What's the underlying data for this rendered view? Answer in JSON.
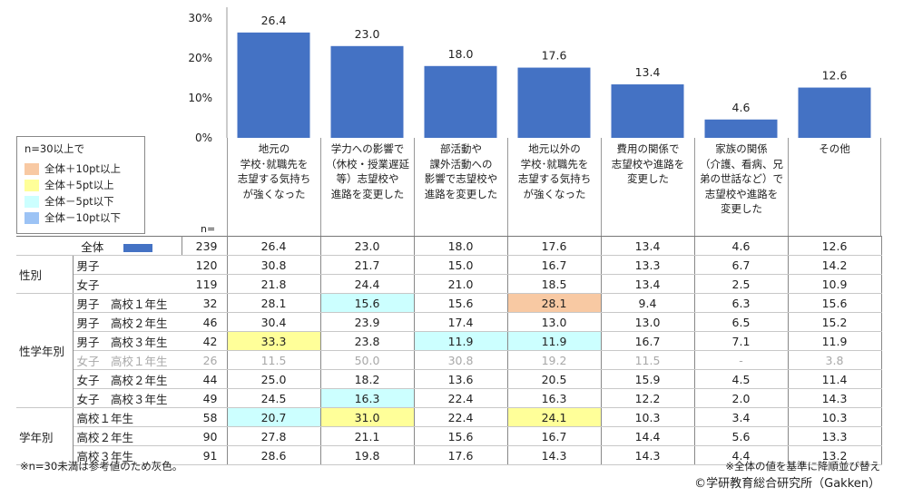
{
  "chart_data": {
    "type": "bar",
    "yticks": [
      "30%",
      "20%",
      "10%",
      "0%"
    ],
    "ylim": [
      0,
      30
    ],
    "bar_color": "#4472c4",
    "categories": [
      "地元の\n学校･就職先を\n志望する気持ち\nが強くなった",
      "学力への影響で\n（休校・授業遅延\n等）志望校や\n進路を変更した",
      "部活動や\n課外活動への\n影響で志望校や\n進路を変更した",
      "地元以外の\n学校･就職先を\n志望する気持ち\nが強くなった",
      "費用の関係で\n志望校や進路を\n変更した",
      "家族の関係\n（介護、看病、兄\n弟の世話など）で\n志望校や進路を\n変更した",
      "その他"
    ],
    "values": [
      26.4,
      23.0,
      18.0,
      17.6,
      13.4,
      4.6,
      12.6
    ],
    "value_labels": [
      "26.4",
      "23.0",
      "18.0",
      "17.6",
      "13.4",
      "4.6",
      "12.6"
    ]
  },
  "legend": {
    "title": "n=30以上で",
    "items": [
      {
        "label": "全体＋10pt以上",
        "color": "#f8c9a3"
      },
      {
        "label": "全体＋5pt以上",
        "color": "#ffff99"
      },
      {
        "label": "全体－5pt以下",
        "color": "#ccffff"
      },
      {
        "label": "全体－10pt以下",
        "color": "#9cc3f5"
      }
    ]
  },
  "n_header": "n=",
  "table": {
    "rows": [
      {
        "group": "",
        "label": "全体",
        "n": "239",
        "values": [
          "26.4",
          "23.0",
          "18.0",
          "17.6",
          "13.4",
          "4.6",
          "12.6"
        ],
        "hl": [
          "",
          "",
          "",
          "",
          "",
          "",
          ""
        ],
        "gray": false,
        "overall": true
      },
      {
        "group": "性別",
        "label": "男子",
        "n": "120",
        "values": [
          "30.8",
          "21.7",
          "15.0",
          "16.7",
          "13.3",
          "6.7",
          "14.2"
        ],
        "hl": [
          "",
          "",
          "",
          "",
          "",
          "",
          ""
        ],
        "gray": false
      },
      {
        "group": "",
        "label": "女子",
        "n": "119",
        "values": [
          "21.8",
          "24.4",
          "21.0",
          "18.5",
          "13.4",
          "2.5",
          "10.9"
        ],
        "hl": [
          "",
          "",
          "",
          "",
          "",
          "",
          ""
        ],
        "gray": false
      },
      {
        "group": "性学年別",
        "label": "男子　高校１年生",
        "n": "32",
        "values": [
          "28.1",
          "15.6",
          "15.6",
          "28.1",
          "9.4",
          "6.3",
          "15.6"
        ],
        "hl": [
          "",
          "c",
          "",
          "o",
          "",
          "",
          ""
        ],
        "gray": false
      },
      {
        "group": "",
        "label": "男子　高校２年生",
        "n": "46",
        "values": [
          "30.4",
          "23.9",
          "17.4",
          "13.0",
          "13.0",
          "6.5",
          "15.2"
        ],
        "hl": [
          "",
          "",
          "",
          "",
          "",
          "",
          ""
        ],
        "gray": false
      },
      {
        "group": "",
        "label": "男子　高校３年生",
        "n": "42",
        "values": [
          "33.3",
          "23.8",
          "11.9",
          "11.9",
          "16.7",
          "7.1",
          "11.9"
        ],
        "hl": [
          "y",
          "",
          "c",
          "c",
          "",
          "",
          ""
        ],
        "gray": false
      },
      {
        "group": "",
        "label": "女子　高校１年生",
        "n": "26",
        "values": [
          "11.5",
          "50.0",
          "30.8",
          "19.2",
          "11.5",
          "-",
          "3.8"
        ],
        "hl": [
          "",
          "",
          "",
          "",
          "",
          "",
          ""
        ],
        "gray": true
      },
      {
        "group": "",
        "label": "女子　高校２年生",
        "n": "44",
        "values": [
          "25.0",
          "18.2",
          "13.6",
          "20.5",
          "15.9",
          "4.5",
          "11.4"
        ],
        "hl": [
          "",
          "",
          "",
          "",
          "",
          "",
          ""
        ],
        "gray": false
      },
      {
        "group": "",
        "label": "女子　高校３年生",
        "n": "49",
        "values": [
          "24.5",
          "16.3",
          "22.4",
          "16.3",
          "12.2",
          "2.0",
          "14.3"
        ],
        "hl": [
          "",
          "c",
          "",
          "",
          "",
          "",
          ""
        ],
        "gray": false
      },
      {
        "group": "学年別",
        "label": "高校１年生",
        "n": "58",
        "values": [
          "20.7",
          "31.0",
          "22.4",
          "24.1",
          "10.3",
          "3.4",
          "10.3"
        ],
        "hl": [
          "c",
          "y",
          "",
          "y",
          "",
          "",
          ""
        ],
        "gray": false
      },
      {
        "group": "",
        "label": "高校２年生",
        "n": "90",
        "values": [
          "27.8",
          "21.1",
          "15.6",
          "16.7",
          "14.4",
          "5.6",
          "13.3"
        ],
        "hl": [
          "",
          "",
          "",
          "",
          "",
          "",
          ""
        ],
        "gray": false
      },
      {
        "group": "",
        "label": "高校３年生",
        "n": "91",
        "values": [
          "28.6",
          "19.8",
          "17.6",
          "14.3",
          "14.3",
          "4.4",
          "13.2"
        ],
        "hl": [
          "",
          "",
          "",
          "",
          "",
          "",
          ""
        ],
        "gray": false
      }
    ],
    "hl_colors": {
      "o": "#f8c9a3",
      "y": "#ffff99",
      "c": "#ccffff"
    }
  },
  "footnote_left": "※n=30未満は参考値のため灰色。",
  "footnote_right": "※全体の値を基準に降順並び替え",
  "copyright": "©学研教育総合研究所（Gakken）"
}
